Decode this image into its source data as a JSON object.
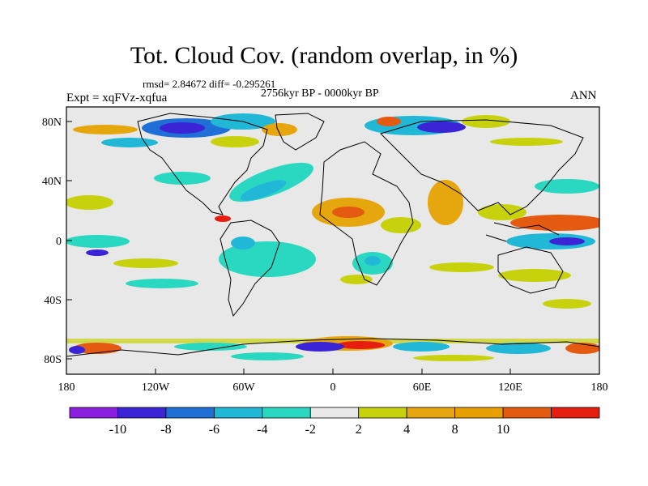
{
  "header": {
    "title": "Tot. Cloud Cov. (random overlap, in %)",
    "stats": "rmsd= 2.84672 diff= -0.295261",
    "period": "2756kyr BP - 0000kyr BP",
    "experiment": "Expt = xqFVz-xqfua",
    "season": "ANN"
  },
  "axes": {
    "lon_ticks": [
      "180",
      "120W",
      "60W",
      "0",
      "60E",
      "120E",
      "180"
    ],
    "lat_ticks": [
      "80N",
      "40N",
      "0",
      "40S",
      "80S"
    ]
  },
  "legend": {
    "labels": [
      "-10",
      "-8",
      "-6",
      "-4",
      "-2",
      "2",
      "4",
      "8",
      "10"
    ],
    "colors": [
      "#8a1fe0",
      "#3a24d6",
      "#1f6fd6",
      "#21b8d8",
      "#2ad8c2",
      "#e8e8e8",
      "#c8d20c",
      "#e6a60e",
      "#e8a000",
      "#e45a10",
      "#e61e10"
    ]
  },
  "colors": {
    "land_line": "#000000",
    "background_field": "#e8e8e8"
  }
}
